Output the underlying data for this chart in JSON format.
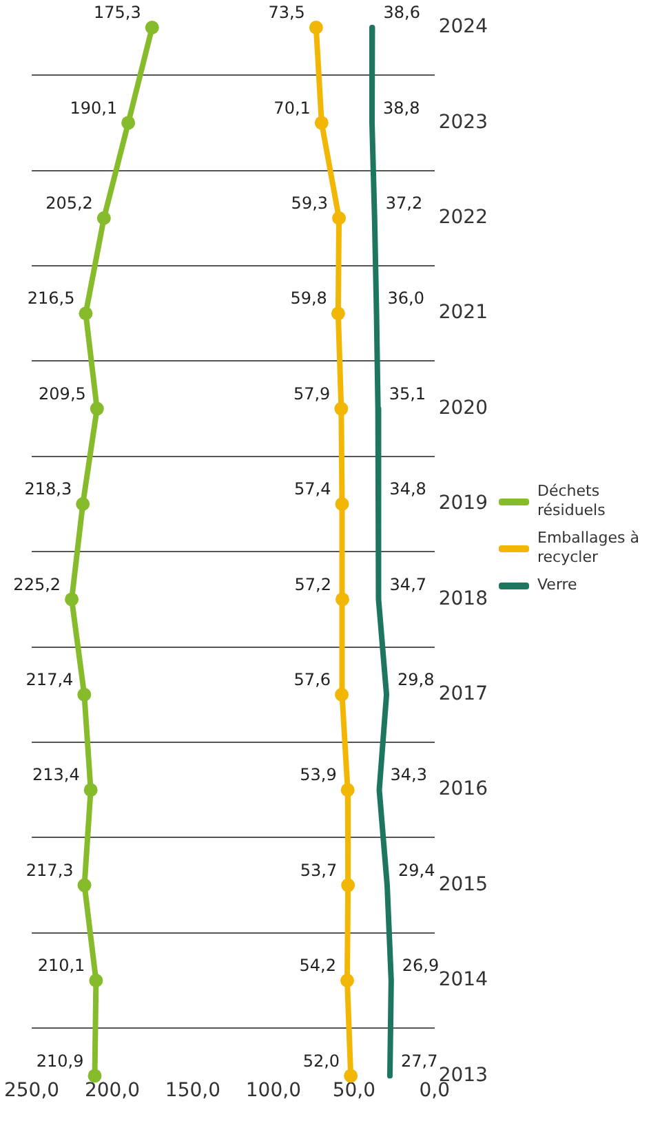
{
  "chart_data": {
    "type": "line",
    "orientation": "horizontal",
    "categories": [
      "2024",
      "2023",
      "2022",
      "2021",
      "2020",
      "2019",
      "2018",
      "2017",
      "2016",
      "2015",
      "2014",
      "2013"
    ],
    "series": [
      {
        "name": "Déchets résiduels",
        "color": "#86bc2c",
        "marker": "circle",
        "values": [
          175.3,
          190.1,
          205.2,
          216.5,
          209.5,
          218.3,
          225.2,
          217.4,
          213.4,
          217.3,
          210.1,
          210.9
        ],
        "value_labels": [
          "175,3",
          "190,1",
          "205,2",
          "216,5",
          "209,5",
          "218,3",
          "225,2",
          "217,4",
          "213,4",
          "217,3",
          "210,1",
          "210,9"
        ]
      },
      {
        "name": "Emballages à recycler",
        "color": "#f2b705",
        "marker": "circle",
        "values": [
          73.5,
          70.1,
          59.3,
          59.8,
          57.9,
          57.4,
          57.2,
          57.6,
          53.9,
          53.7,
          54.2,
          52.0
        ],
        "value_labels": [
          "73,5",
          "70,1",
          "59,3",
          "59,8",
          "57,9",
          "57,4",
          "57,2",
          "57,6",
          "53,9",
          "53,7",
          "54,2",
          "52,0"
        ]
      },
      {
        "name": "Verre",
        "color": "#1e7560",
        "marker": "none",
        "values": [
          38.6,
          38.8,
          37.2,
          36.0,
          35.1,
          34.8,
          34.7,
          29.8,
          34.3,
          29.4,
          26.9,
          27.7
        ],
        "value_labels": [
          "38,6",
          "38,8",
          "37,2",
          "36,0",
          "35,1",
          "34,8",
          "34,7",
          "29,8",
          "34,3",
          "29,4",
          "26,9",
          "27,7"
        ]
      }
    ],
    "xlim": [
      250,
      0
    ],
    "xticks": [
      {
        "value": 250,
        "label": "250,0"
      },
      {
        "value": 200,
        "label": "200,0"
      },
      {
        "value": 150,
        "label": "150,0"
      },
      {
        "value": 100,
        "label": "100,0"
      },
      {
        "value": 50,
        "label": "50,0"
      },
      {
        "value": 0,
        "label": "0,0"
      }
    ],
    "grid": "y",
    "legend": "right"
  }
}
